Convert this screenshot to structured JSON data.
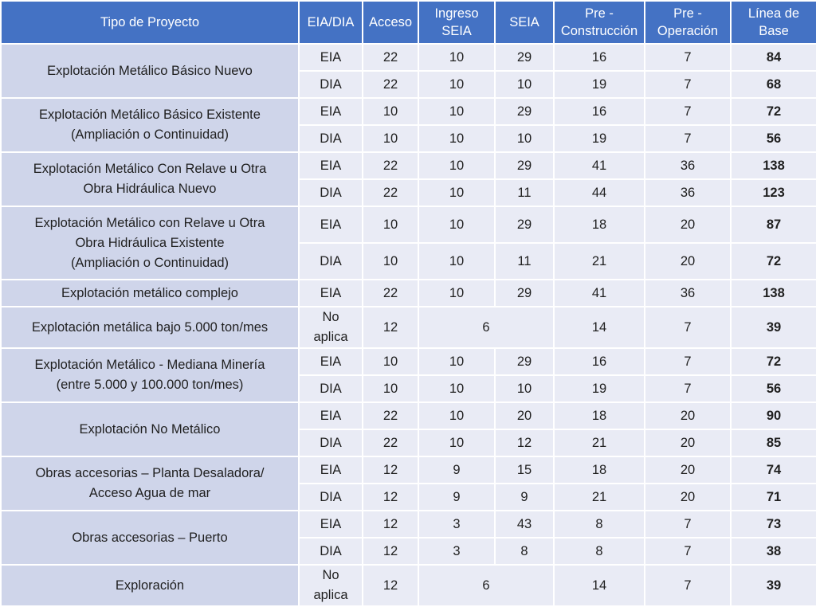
{
  "headers": {
    "tipo": "Tipo de Proyecto",
    "eia_dia": "EIA/DIA",
    "acceso": "Acceso",
    "ingreso_1": "Ingreso",
    "ingreso_2": "SEIA",
    "seia": "SEIA",
    "precons_1": "Pre -",
    "precons_2": "Construcción",
    "preop_1": "Pre -",
    "preop_2": "Operación",
    "base_1": "Línea de",
    "base_2": "Base"
  },
  "groups": [
    {
      "name_lines": [
        "Explotación Metálico Básico Nuevo"
      ],
      "rows": [
        {
          "type": "EIA",
          "acceso": "22",
          "ingreso": "10",
          "seia": "29",
          "precons": "16",
          "preop": "7",
          "base": "84"
        },
        {
          "type": "DIA",
          "acceso": "22",
          "ingreso": "10",
          "seia": "10",
          "precons": "19",
          "preop": "7",
          "base": "68"
        }
      ]
    },
    {
      "name_lines": [
        "Explotación Metálico Básico Existente",
        "(Ampliación o Continuidad)"
      ],
      "rows": [
        {
          "type": "EIA",
          "acceso": "10",
          "ingreso": "10",
          "seia": "29",
          "precons": "16",
          "preop": "7",
          "base": "72"
        },
        {
          "type": "DIA",
          "acceso": "10",
          "ingreso": "10",
          "seia": "10",
          "precons": "19",
          "preop": "7",
          "base": "56"
        }
      ]
    },
    {
      "name_lines": [
        "Explotación Metálico Con Relave u Otra",
        "Obra Hidráulica Nuevo"
      ],
      "rows": [
        {
          "type": "EIA",
          "acceso": "22",
          "ingreso": "10",
          "seia": "29",
          "precons": "41",
          "preop": "36",
          "base": "138"
        },
        {
          "type": "DIA",
          "acceso": "22",
          "ingreso": "10",
          "seia": "11",
          "precons": "44",
          "preop": "36",
          "base": "123"
        }
      ]
    },
    {
      "name_lines": [
        "Explotación Metálico con Relave u Otra",
        "Obra Hidráulica Existente",
        "(Ampliación o Continuidad)"
      ],
      "rows": [
        {
          "type": "EIA",
          "acceso": "10",
          "ingreso": "10",
          "seia": "29",
          "precons": "18",
          "preop": "20",
          "base": "87"
        },
        {
          "type": "DIA",
          "acceso": "10",
          "ingreso": "10",
          "seia": "11",
          "precons": "21",
          "preop": "20",
          "base": "72"
        }
      ]
    },
    {
      "name_lines": [
        "Explotación metálico complejo"
      ],
      "rows": [
        {
          "type": "EIA",
          "acceso": "22",
          "ingreso": "10",
          "seia": "29",
          "precons": "41",
          "preop": "36",
          "base": "138"
        }
      ]
    },
    {
      "name_lines": [
        "Explotación metálica bajo 5.000 ton/mes"
      ],
      "rows": [
        {
          "type": "No aplica",
          "acceso": "12",
          "merged": "6",
          "precons": "14",
          "preop": "7",
          "base": "39"
        }
      ]
    },
    {
      "name_lines": [
        "Explotación Metálico - Mediana Minería",
        "(entre 5.000 y 100.000 ton/mes)"
      ],
      "rows": [
        {
          "type": "EIA",
          "acceso": "10",
          "ingreso": "10",
          "seia": "29",
          "precons": "16",
          "preop": "7",
          "base": "72"
        },
        {
          "type": "DIA",
          "acceso": "10",
          "ingreso": "10",
          "seia": "10",
          "precons": "19",
          "preop": "7",
          "base": "56"
        }
      ]
    },
    {
      "name_lines": [
        "Explotación No Metálico"
      ],
      "rows": [
        {
          "type": "EIA",
          "acceso": "22",
          "ingreso": "10",
          "seia": "20",
          "precons": "18",
          "preop": "20",
          "base": "90"
        },
        {
          "type": "DIA",
          "acceso": "22",
          "ingreso": "10",
          "seia": "12",
          "precons": "21",
          "preop": "20",
          "base": "85"
        }
      ]
    },
    {
      "name_lines": [
        "Obras accesorias – Planta Desaladora/",
        "Acceso Agua de mar"
      ],
      "rows": [
        {
          "type": "EIA",
          "acceso": "12",
          "ingreso": "9",
          "seia": "15",
          "precons": "18",
          "preop": "20",
          "base": "74"
        },
        {
          "type": "DIA",
          "acceso": "12",
          "ingreso": "9",
          "seia": "9",
          "precons": "21",
          "preop": "20",
          "base": "71"
        }
      ]
    },
    {
      "name_lines": [
        "Obras accesorias – Puerto"
      ],
      "rows": [
        {
          "type": "EIA",
          "acceso": "12",
          "ingreso": "3",
          "seia": "43",
          "precons": "8",
          "preop": "7",
          "base": "73"
        },
        {
          "type": "DIA",
          "acceso": "12",
          "ingreso": "3",
          "seia": "8",
          "precons": "8",
          "preop": "7",
          "base": "38"
        }
      ]
    },
    {
      "name_lines": [
        "Exploración"
      ],
      "rows": [
        {
          "type": "No aplica",
          "acceso": "12",
          "merged": "6",
          "precons": "14",
          "preop": "7",
          "base": "39"
        }
      ]
    }
  ]
}
